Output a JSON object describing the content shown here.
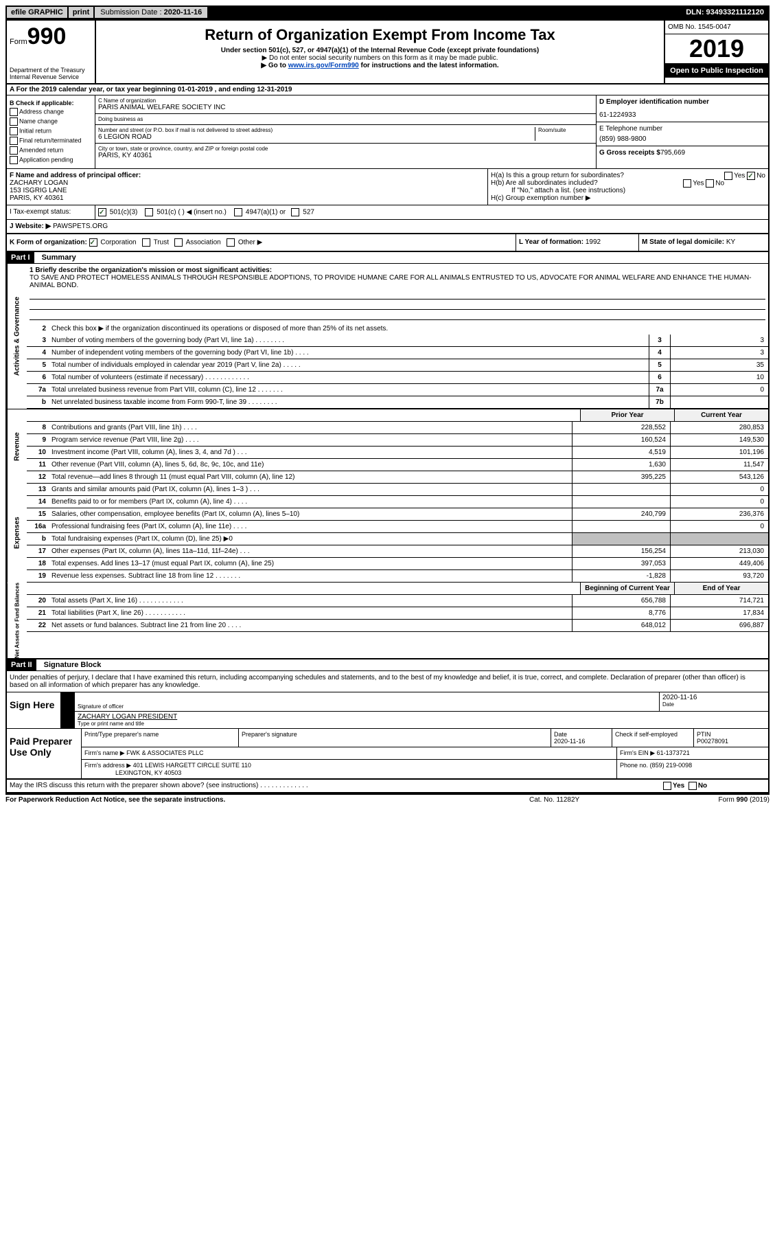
{
  "topbar": {
    "efile": "efile GRAPHIC",
    "print": "print",
    "sub_label": "Submission Date :",
    "sub_date": "2020-11-16",
    "dln": "DLN: 93493321112120"
  },
  "header": {
    "form_label": "Form",
    "form_num": "990",
    "dept": "Department of the Treasury\nInternal Revenue Service",
    "title": "Return of Organization Exempt From Income Tax",
    "sub1": "Under section 501(c), 527, or 4947(a)(1) of the Internal Revenue Code (except private foundations)",
    "sub2": "▶ Do not enter social security numbers on this form as it may be made public.",
    "sub3_pre": "▶ Go to ",
    "sub3_link": "www.irs.gov/Form990",
    "sub3_post": " for instructions and the latest information.",
    "omb": "OMB No. 1545-0047",
    "year": "2019",
    "inspect": "Open to Public Inspection"
  },
  "row_a": "A For the 2019 calendar year, or tax year beginning 01-01-2019    , and ending 12-31-2019",
  "section_b": {
    "title": "B Check if applicable:",
    "items": [
      "Address change",
      "Name change",
      "Initial return",
      "Final return/terminated",
      "Amended return",
      "Application pending"
    ]
  },
  "section_c": {
    "name_label": "C Name of organization",
    "name": "PARIS ANIMAL WELFARE SOCIETY INC",
    "dba_label": "Doing business as",
    "dba": "",
    "addr_label": "Number and street (or P.O. box if mail is not delivered to street address)",
    "room_label": "Room/suite",
    "addr": "6 LEGION ROAD",
    "city_label": "City or town, state or province, country, and ZIP or foreign postal code",
    "city": "PARIS, KY  40361"
  },
  "section_de": {
    "d_label": "D Employer identification number",
    "ein": "61-1224933",
    "e_label": "E Telephone number",
    "phone": "(859) 988-9800",
    "g_label": "G Gross receipts $",
    "g_val": "795,669"
  },
  "section_f": {
    "label": "F  Name and address of principal officer:",
    "name": "ZACHARY LOGAN",
    "addr1": "153 ISGRIG LANE",
    "addr2": "PARIS, KY  40361"
  },
  "section_h": {
    "ha": "H(a)  Is this a group return for subordinates?",
    "hb": "H(b)  Are all subordinates included?",
    "hb_note": "If \"No,\" attach a list. (see instructions)",
    "hc": "H(c)  Group exemption number ▶",
    "yes": "Yes",
    "no": "No"
  },
  "tax_status": {
    "label": "I  Tax-exempt status:",
    "opt1": "501(c)(3)",
    "opt2": "501(c) (   ) ◀ (insert no.)",
    "opt3": "4947(a)(1) or",
    "opt4": "527"
  },
  "website": {
    "label": "J  Website: ▶",
    "val": "PAWSPETS.ORG"
  },
  "row_k": {
    "k": "K Form of organization:",
    "corp": "Corporation",
    "trust": "Trust",
    "assoc": "Association",
    "other": "Other ▶",
    "l_label": "L Year of formation:",
    "l_val": "1992",
    "m_label": "M State of legal domicile:",
    "m_val": "KY"
  },
  "part1": {
    "header": "Part I",
    "title": "Summary",
    "line1_label": "1  Briefly describe the organization's mission or most significant activities:",
    "mission": "TO SAVE AND PROTECT HOMELESS ANIMALS THROUGH RESPONSIBLE ADOPTIONS, TO PROVIDE HUMANE CARE FOR ALL ANIMALS ENTRUSTED TO US, ADVOCATE FOR ANIMAL WELFARE AND ENHANCE THE HUMAN-ANIMAL BOND.",
    "line2": "Check this box ▶     if the organization discontinued its operations or disposed of more than 25% of its net assets.",
    "sidebar_act": "Activities & Governance",
    "sidebar_rev": "Revenue",
    "sidebar_exp": "Expenses",
    "sidebar_net": "Net Assets or Fund Balances",
    "col_prior": "Prior Year",
    "col_current": "Current Year",
    "col_begin": "Beginning of Current Year",
    "col_end": "End of Year",
    "lines_gov": [
      {
        "n": "3",
        "t": "Number of voting members of the governing body (Part VI, line 1a)  .    .    .    .    .    .    .    .",
        "b": "3",
        "v": "3"
      },
      {
        "n": "4",
        "t": "Number of independent voting members of the governing body (Part VI, line 1b)    .    .    .    .",
        "b": "4",
        "v": "3"
      },
      {
        "n": "5",
        "t": "Total number of individuals employed in calendar year 2019 (Part V, line 2a)   .    .    .    .    .",
        "b": "5",
        "v": "35"
      },
      {
        "n": "6",
        "t": "Total number of volunteers (estimate if necessary)    .    .    .    .    .    .    .    .    .    .    .    .",
        "b": "6",
        "v": "10"
      },
      {
        "n": "7a",
        "t": "Total unrelated business revenue from Part VIII, column (C), line 12   .    .    .    .    .    .    .",
        "b": "7a",
        "v": "0"
      },
      {
        "n": "b",
        "t": "Net unrelated business taxable income from Form 990-T, line 39   .    .    .    .    .    .    .    .",
        "b": "7b",
        "v": ""
      }
    ],
    "lines_rev": [
      {
        "n": "8",
        "t": "Contributions and grants (Part VIII, line 1h)   .    .    .    .",
        "p": "228,552",
        "c": "280,853"
      },
      {
        "n": "9",
        "t": "Program service revenue (Part VIII, line 2g)  .    .    .    .",
        "p": "160,524",
        "c": "149,530"
      },
      {
        "n": "10",
        "t": "Investment income (Part VIII, column (A), lines 3, 4, and 7d )    .    .    .",
        "p": "4,519",
        "c": "101,196"
      },
      {
        "n": "11",
        "t": "Other revenue (Part VIII, column (A), lines 5, 6d, 8c, 9c, 10c, and 11e)",
        "p": "1,630",
        "c": "11,547"
      },
      {
        "n": "12",
        "t": "Total revenue—add lines 8 through 11 (must equal Part VIII, column (A), line 12)",
        "p": "395,225",
        "c": "543,126"
      }
    ],
    "lines_exp": [
      {
        "n": "13",
        "t": "Grants and similar amounts paid (Part IX, column (A), lines 1–3 )  .    .    .",
        "p": "",
        "c": "0"
      },
      {
        "n": "14",
        "t": "Benefits paid to or for members (Part IX, column (A), line 4)  .    .    .    .",
        "p": "",
        "c": "0"
      },
      {
        "n": "15",
        "t": "Salaries, other compensation, employee benefits (Part IX, column (A), lines 5–10)",
        "p": "240,799",
        "c": "236,376"
      },
      {
        "n": "16a",
        "t": "Professional fundraising fees (Part IX, column (A), line 11e)  .    .    .    .",
        "p": "",
        "c": "0"
      },
      {
        "n": "b",
        "t": "Total fundraising expenses (Part IX, column (D), line 25) ▶0",
        "p": "gray",
        "c": "gray"
      },
      {
        "n": "17",
        "t": "Other expenses (Part IX, column (A), lines 11a–11d, 11f–24e)   .    .    .",
        "p": "156,254",
        "c": "213,030"
      },
      {
        "n": "18",
        "t": "Total expenses. Add lines 13–17 (must equal Part IX, column (A), line 25)",
        "p": "397,053",
        "c": "449,406"
      },
      {
        "n": "19",
        "t": "Revenue less expenses. Subtract line 18 from line 12  .    .    .    .    .    .    .",
        "p": "-1,828",
        "c": "93,720"
      }
    ],
    "lines_net": [
      {
        "n": "20",
        "t": "Total assets (Part X, line 16)  .    .    .    .    .    .    .    .    .    .    .    .",
        "p": "656,788",
        "c": "714,721"
      },
      {
        "n": "21",
        "t": "Total liabilities (Part X, line 26)   .    .    .    .    .    .    .    .    .    .    .",
        "p": "8,776",
        "c": "17,834"
      },
      {
        "n": "22",
        "t": "Net assets or fund balances. Subtract line 21 from line 20   .    .    .    .",
        "p": "648,012",
        "c": "696,887"
      }
    ]
  },
  "part2": {
    "header": "Part II",
    "title": "Signature Block",
    "penalty": "Under penalties of perjury, I declare that I have examined this return, including accompanying schedules and statements, and to the best of my knowledge and belief, it is true, correct, and complete. Declaration of preparer (other than officer) is based on all information of which preparer has any knowledge.",
    "sign_here": "Sign Here",
    "sig_officer": "Signature of officer",
    "sig_date": "2020-11-16",
    "date_label": "Date",
    "officer_name": "ZACHARY LOGAN  PRESIDENT",
    "type_label": "Type or print name and title",
    "paid_label": "Paid Preparer Use Only",
    "prep_name_label": "Print/Type preparer's name",
    "prep_sig_label": "Preparer's signature",
    "prep_date": "2020-11-16",
    "check_self": "Check      if self-employed",
    "ptin_label": "PTIN",
    "ptin": "P00278091",
    "firm_name_label": "Firm's name     ▶",
    "firm_name": "FWK & ASSOCIATES PLLC",
    "firm_ein_label": "Firm's EIN ▶",
    "firm_ein": "61-1373721",
    "firm_addr_label": "Firm's address ▶",
    "firm_addr1": "401 LEWIS HARGETT CIRCLE SUITE 110",
    "firm_addr2": "LEXINGTON, KY  40503",
    "phone_label": "Phone no.",
    "phone": "(859) 219-0098",
    "irs_discuss": "May the IRS discuss this return with the preparer shown above? (see instructions)    .    .    .    .    .    .    .    .    .    .    .    .    .",
    "yes": "Yes",
    "no": "No"
  },
  "footer": {
    "left": "For Paperwork Reduction Act Notice, see the separate instructions.",
    "mid": "Cat. No. 11282Y",
    "right": "Form 990 (2019)"
  }
}
